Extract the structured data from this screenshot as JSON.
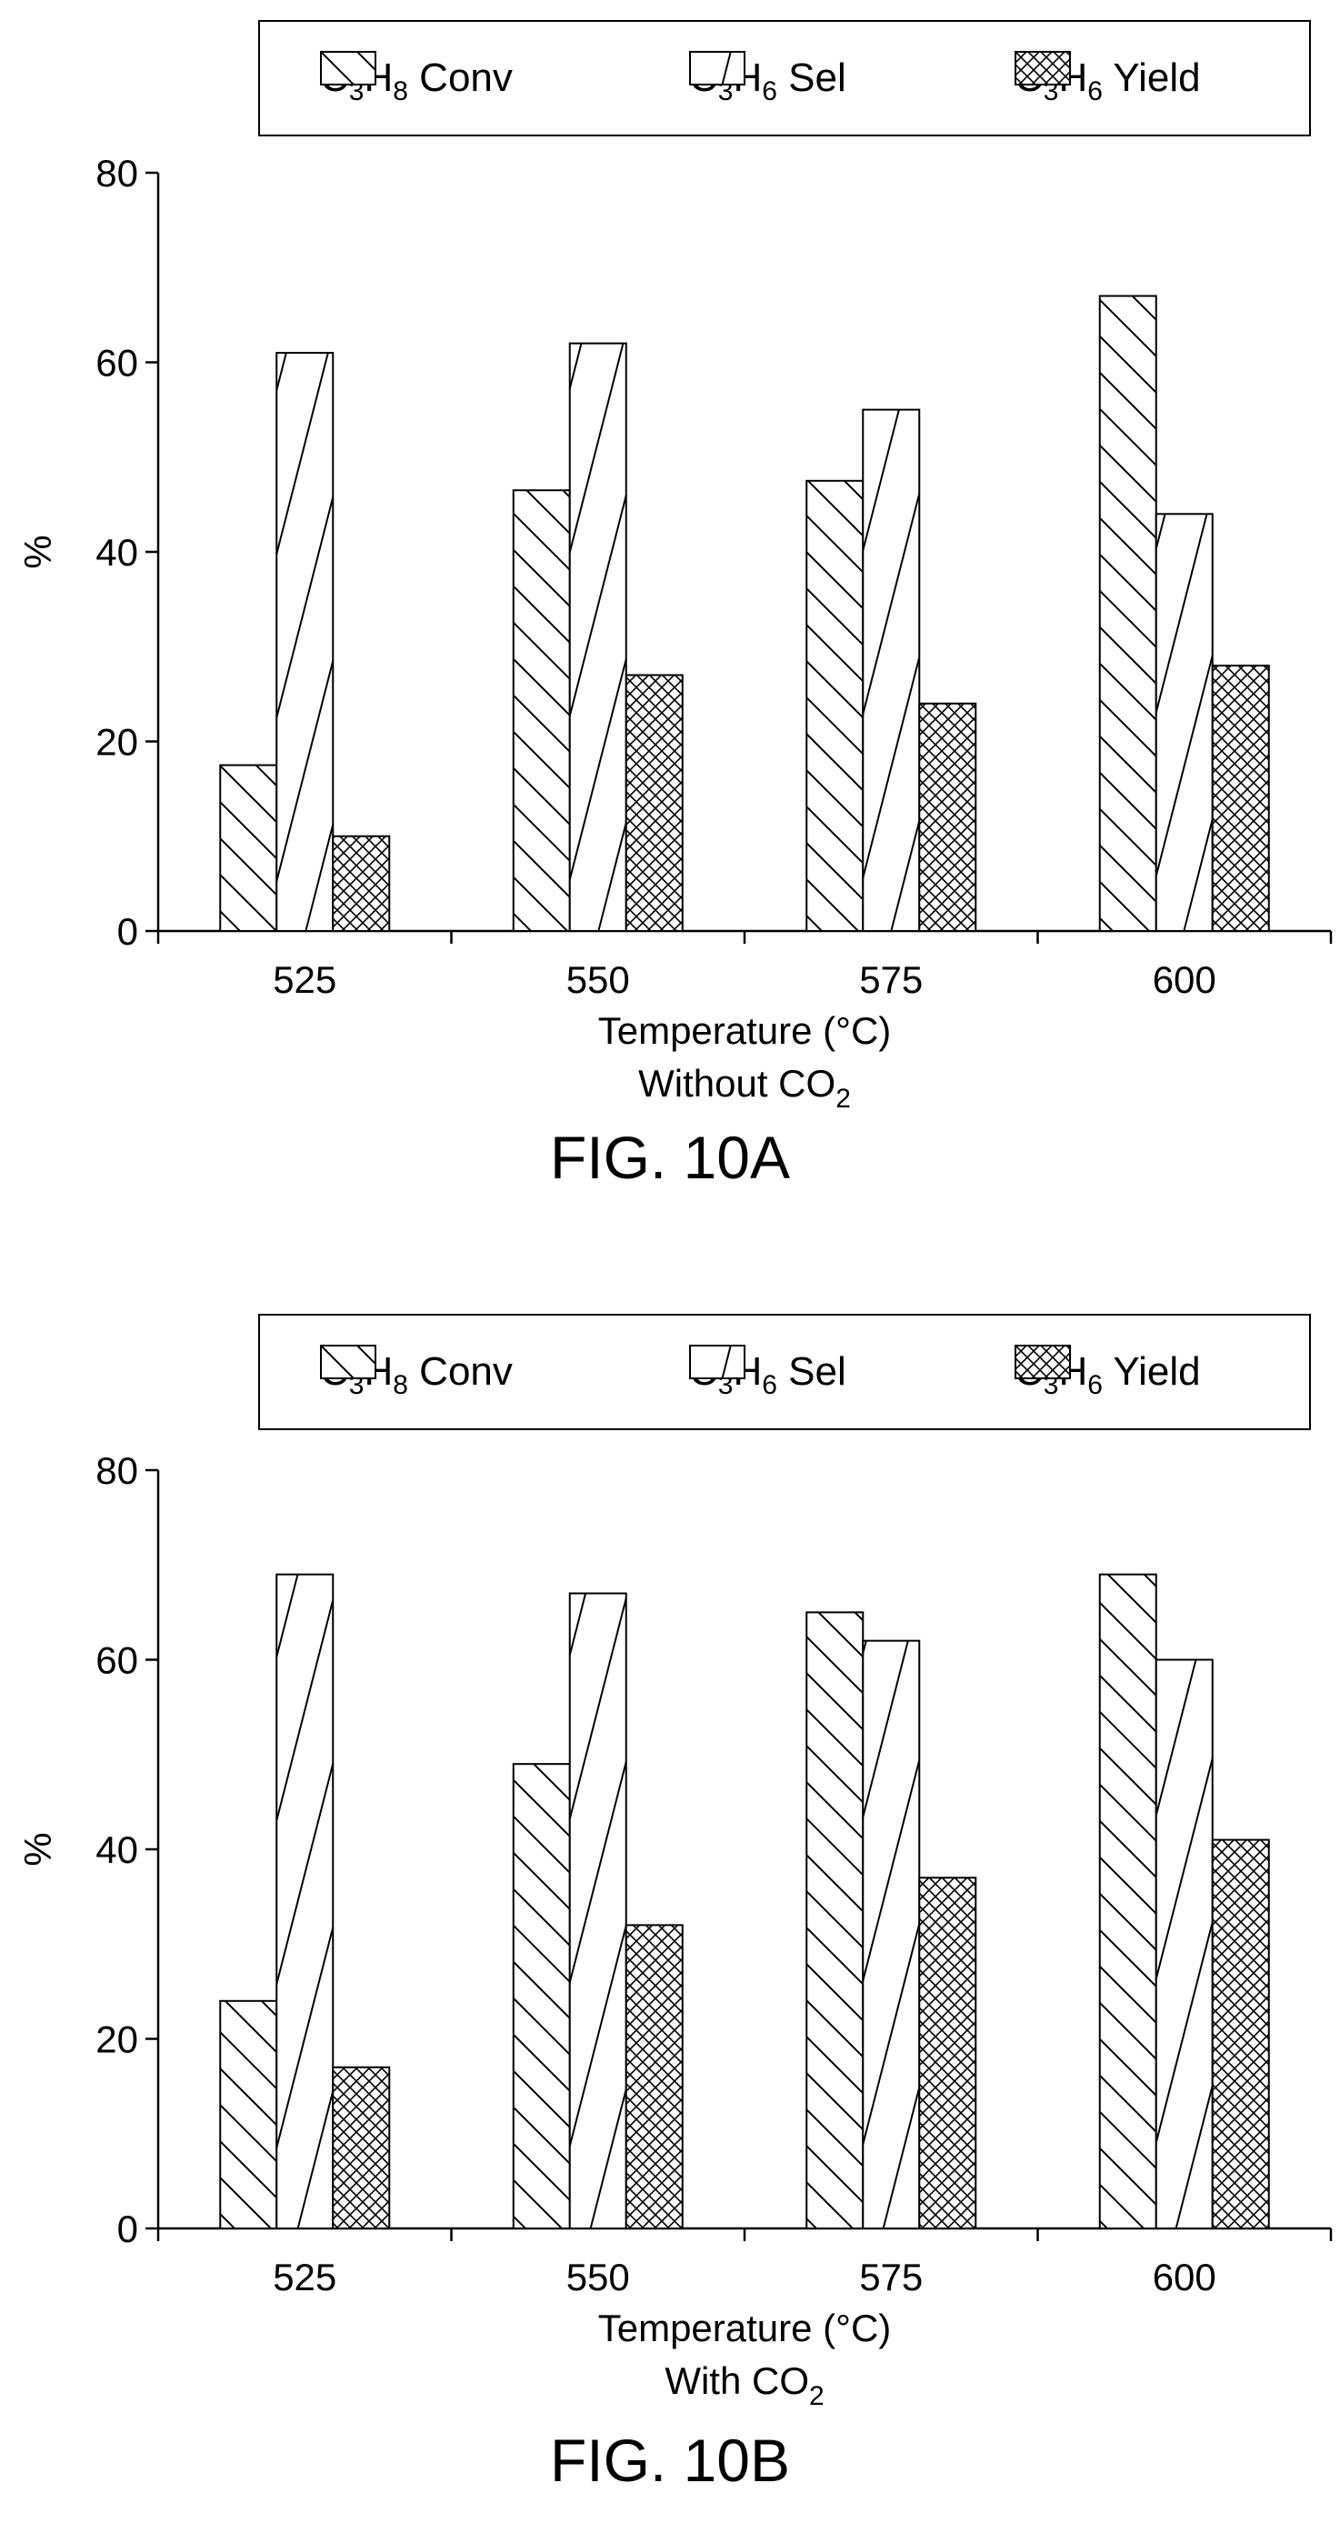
{
  "chart_data": [
    {
      "type": "bar",
      "categories": [
        "525",
        "550",
        "575",
        "600"
      ],
      "series": [
        {
          "name": "C3H8 Conv",
          "label_base": "C",
          "label_sub1": "3",
          "label_mid": "H",
          "label_sub2": "8",
          "label_tail": " Conv",
          "pattern": "back-diagonal",
          "values": [
            17.5,
            46.5,
            47.5,
            67
          ]
        },
        {
          "name": "C3H6 Sel",
          "label_base": "C",
          "label_sub1": "3",
          "label_mid": "H",
          "label_sub2": "6",
          "label_tail": " Sel",
          "pattern": "forward-diagonal",
          "values": [
            61,
            62,
            55,
            44
          ]
        },
        {
          "name": "C3H6 Yield",
          "label_base": "C",
          "label_sub1": "3",
          "label_mid": "H",
          "label_sub2": "6",
          "label_tail": " Yield",
          "pattern": "crosshatch",
          "values": [
            10,
            27,
            24,
            28
          ]
        }
      ],
      "xlabel": "Temperature (°C)",
      "condition_base": "Without CO",
      "condition_sub": "2",
      "ylabel": "%",
      "ylim": [
        0,
        80
      ],
      "yticks": [
        0,
        20,
        40,
        60,
        80
      ],
      "figure_label": "FIG. 10A",
      "legend_position": "top"
    },
    {
      "type": "bar",
      "categories": [
        "525",
        "550",
        "575",
        "600"
      ],
      "series": [
        {
          "name": "C3H8 Conv",
          "label_base": "C",
          "label_sub1": "3",
          "label_mid": "H",
          "label_sub2": "8",
          "label_tail": " Conv",
          "pattern": "back-diagonal",
          "values": [
            24,
            49,
            65,
            69
          ]
        },
        {
          "name": "C3H6 Sel",
          "label_base": "C",
          "label_sub1": "3",
          "label_mid": "H",
          "label_sub2": "6",
          "label_tail": " Sel",
          "pattern": "forward-diagonal",
          "values": [
            69,
            67,
            62,
            60
          ]
        },
        {
          "name": "C3H6 Yield",
          "label_base": "C",
          "label_sub1": "3",
          "label_mid": "H",
          "label_sub2": "6",
          "label_tail": " Yield",
          "pattern": "crosshatch",
          "values": [
            17,
            32,
            37,
            41
          ]
        }
      ],
      "xlabel": "Temperature (°C)",
      "condition_base": "With CO",
      "condition_sub": "2",
      "ylabel": "%",
      "ylim": [
        0,
        80
      ],
      "yticks": [
        0,
        20,
        40,
        60,
        80
      ],
      "figure_label": "FIG. 10B",
      "legend_position": "top"
    }
  ]
}
